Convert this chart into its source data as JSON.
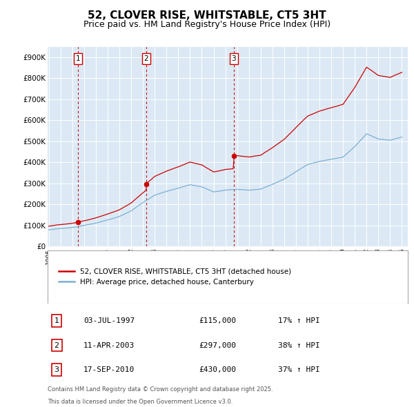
{
  "title": "52, CLOVER RISE, WHITSTABLE, CT5 3HT",
  "subtitle": "Price paid vs. HM Land Registry's House Price Index (HPI)",
  "legend_line1": "52, CLOVER RISE, WHITSTABLE, CT5 3HT (detached house)",
  "legend_line2": "HPI: Average price, detached house, Canterbury",
  "sales": [
    {
      "label": "1",
      "date_dec": 1997.496,
      "price": 115000,
      "pct": "17%",
      "date_str": "03-JUL-1997"
    },
    {
      "label": "2",
      "date_dec": 2003.274,
      "price": 297000,
      "pct": "38%",
      "date_str": "11-APR-2003"
    },
    {
      "label": "3",
      "date_dec": 2010.712,
      "price": 430000,
      "pct": "37%",
      "date_str": "17-SEP-2010"
    }
  ],
  "footer_line1": "Contains HM Land Registry data © Crown copyright and database right 2025.",
  "footer_line2": "This data is licensed under the Open Government Licence v3.0.",
  "hpi_color": "#7bafd4",
  "price_color": "#cc0000",
  "vline_color": "#cc0000",
  "ylim_min": 0,
  "ylim_max": 950000,
  "xlim_start": 1994.9,
  "xlim_end": 2025.5,
  "chart_bg": "#dce9f5",
  "background_color": "#ffffff",
  "grid_color": "#ffffff",
  "title_fontsize": 11,
  "subtitle_fontsize": 9
}
